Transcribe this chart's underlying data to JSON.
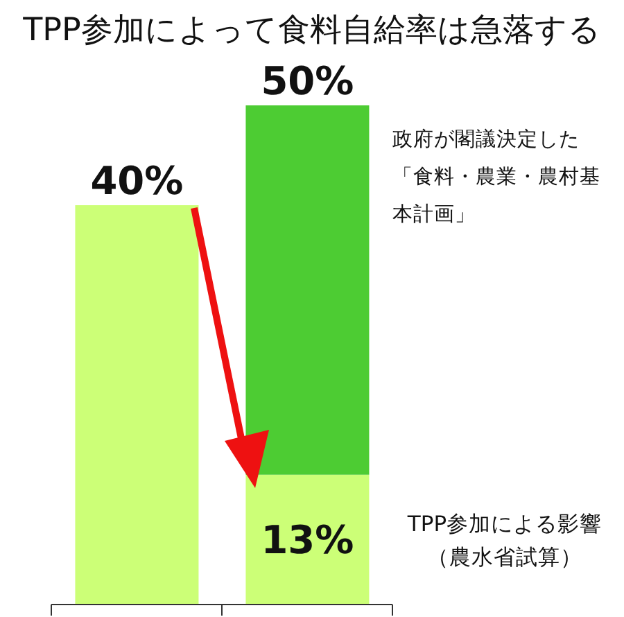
{
  "chart_data": {
    "type": "bar",
    "title": "TPP参加によって食料自給率は急落する",
    "categories": [
      null,
      null
    ],
    "stacked": true,
    "series": [
      {
        "color": "#ccff77",
        "values": [
          40,
          13
        ],
        "value_labels": [
          "40%",
          "13%"
        ]
      },
      {
        "color": "#4dcc33",
        "values": [
          null,
          37
        ],
        "value_labels": [
          null,
          null
        ]
      }
    ],
    "totals": [
      null,
      "50%"
    ],
    "annotations": [
      "政府が閣議決定した「食料・農業・農村基本計画」",
      "TPP参加による影響（農水省試算）"
    ]
  }
}
